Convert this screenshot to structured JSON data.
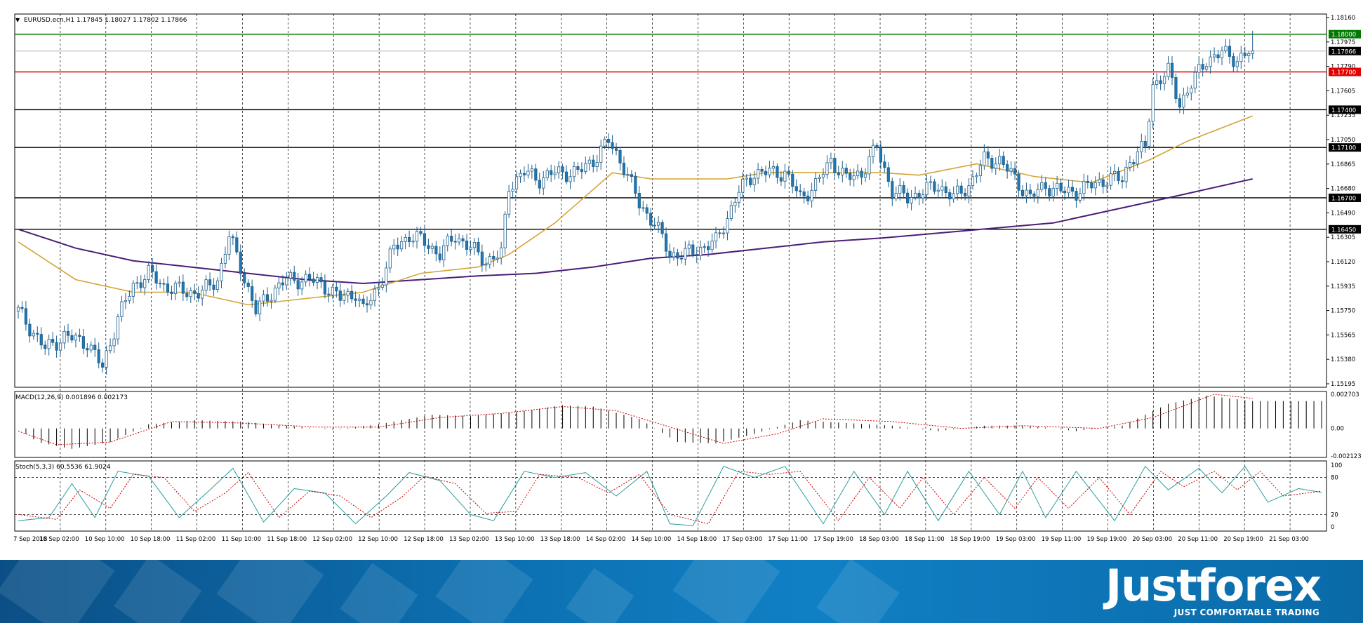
{
  "symbol_header": {
    "marker": "▼",
    "text": "EURUSD.ecn,H1  1.17845 1.18027 1.17802 1.17866"
  },
  "price_axis_labels": [
    "1.18160",
    "1.17975",
    "1.17790",
    "1.17605",
    "1.17235",
    "1.17050",
    "1.16865",
    "1.16680",
    "1.16490",
    "1.16305",
    "1.16120",
    "1.15935",
    "1.15750",
    "1.15565",
    "1.15380",
    "1.15195"
  ],
  "macd_header": "MACD(12,26,9) 0.001896 0.002173",
  "macd_axis_labels": [
    "0.002703",
    "0.00",
    "-0.002123"
  ],
  "stoch_header": "Stoch(5,3,3) 60.5536 61.9024",
  "stoch_axis_labels": [
    "100",
    "80",
    "20",
    "0"
  ],
  "time_labels": [
    "7 Sep 2018",
    "10 Sep 02:00",
    "10 Sep 10:00",
    "10 Sep 18:00",
    "11 Sep 02:00",
    "11 Sep 10:00",
    "11 Sep 18:00",
    "12 Sep 02:00",
    "12 Sep 10:00",
    "12 Sep 18:00",
    "13 Sep 02:00",
    "13 Sep 10:00",
    "13 Sep 18:00",
    "14 Sep 02:00",
    "14 Sep 10:00",
    "14 Sep 18:00",
    "17 Sep 03:00",
    "17 Sep 11:00",
    "17 Sep 19:00",
    "18 Sep 03:00",
    "18 Sep 11:00",
    "18 Sep 19:00",
    "19 Sep 03:00",
    "19 Sep 11:00",
    "19 Sep 19:00",
    "20 Sep 03:00",
    "20 Sep 11:00",
    "20 Sep 19:00",
    "21 Sep 03:00"
  ],
  "brand": {
    "name": "Justforex",
    "tagline": "JUST COMFORTABLE TRADING"
  },
  "colors": {
    "bull": "#ffffff",
    "bear": "#1f77b4",
    "wick": "#1f5f8b",
    "ma_fast": "#d4a437",
    "ma_slow": "#4b1d78",
    "resistance_green": "#007a00",
    "resistance_red": "#e00000",
    "level_black": "#000000"
  },
  "chart_data": {
    "type": "candlestick",
    "symbol": "EURUSD.ecn",
    "timeframe": "H1",
    "ohlc_header": {
      "open": 1.17845,
      "high": 1.18027,
      "low": 1.17802,
      "close": 1.17866
    },
    "ylim": [
      1.15195,
      1.1816
    ],
    "current_price": 1.17866,
    "horizontal_levels": [
      {
        "value": 1.18,
        "label": "1.18000",
        "color": "#007a00"
      },
      {
        "value": 1.177,
        "label": "1.17700",
        "color": "#e00000"
      },
      {
        "value": 1.174,
        "label": "1.17400",
        "color": "#000000"
      },
      {
        "value": 1.171,
        "label": "1.17100",
        "color": "#000000"
      },
      {
        "value": 1.167,
        "label": "1.16700",
        "color": "#000000"
      },
      {
        "value": 1.1645,
        "label": "1.16450",
        "color": "#000000"
      }
    ],
    "close_path": [
      [
        0,
        1.158
      ],
      [
        7,
        1.155
      ],
      [
        12,
        1.156
      ],
      [
        18,
        1.1555
      ],
      [
        22,
        1.1535
      ],
      [
        26,
        1.1575
      ],
      [
        30,
        1.16
      ],
      [
        34,
        1.161
      ],
      [
        38,
        1.16
      ],
      [
        44,
        1.1595
      ],
      [
        48,
        1.1595
      ],
      [
        52,
        1.1605
      ],
      [
        55,
        1.164
      ],
      [
        58,
        1.1615
      ],
      [
        62,
        1.158
      ],
      [
        66,
        1.1595
      ],
      [
        70,
        1.1605
      ],
      [
        76,
        1.1605
      ],
      [
        80,
        1.16
      ],
      [
        84,
        1.159
      ],
      [
        88,
        1.1595
      ],
      [
        90,
        1.158
      ],
      [
        94,
        1.16
      ],
      [
        98,
        1.163
      ],
      [
        102,
        1.164
      ],
      [
        106,
        1.1635
      ],
      [
        110,
        1.1625
      ],
      [
        114,
        1.164
      ],
      [
        118,
        1.163
      ],
      [
        122,
        1.162
      ],
      [
        126,
        1.1625
      ],
      [
        128,
        1.168
      ],
      [
        132,
        1.169
      ],
      [
        136,
        1.1685
      ],
      [
        140,
        1.169
      ],
      [
        146,
        1.169
      ],
      [
        150,
        1.17
      ],
      [
        154,
        1.1715
      ],
      [
        158,
        1.1695
      ],
      [
        162,
        1.1665
      ],
      [
        166,
        1.165
      ],
      [
        170,
        1.1625
      ],
      [
        174,
        1.1625
      ],
      [
        178,
        1.163
      ],
      [
        182,
        1.1635
      ],
      [
        185,
        1.1655
      ],
      [
        188,
        1.1675
      ],
      [
        192,
        1.169
      ],
      [
        196,
        1.169
      ],
      [
        200,
        1.169
      ],
      [
        204,
        1.167
      ],
      [
        208,
        1.168
      ],
      [
        212,
        1.17
      ],
      [
        216,
        1.1685
      ],
      [
        220,
        1.169
      ],
      [
        224,
        1.171
      ],
      [
        228,
        1.1675
      ],
      [
        232,
        1.167
      ],
      [
        236,
        1.1675
      ],
      [
        240,
        1.168
      ],
      [
        244,
        1.167
      ],
      [
        248,
        1.168
      ],
      [
        252,
        1.17
      ],
      [
        256,
        1.17
      ],
      [
        260,
        1.1685
      ],
      [
        264,
        1.167
      ],
      [
        268,
        1.168
      ],
      [
        272,
        1.1675
      ],
      [
        276,
        1.1675
      ],
      [
        280,
        1.168
      ],
      [
        284,
        1.1685
      ],
      [
        288,
        1.1685
      ],
      [
        290,
        1.17
      ],
      [
        294,
        1.171
      ],
      [
        296,
        1.176
      ],
      [
        300,
        1.177
      ],
      [
        303,
        1.1745
      ],
      [
        306,
        1.176
      ],
      [
        310,
        1.178
      ],
      [
        314,
        1.1785
      ],
      [
        318,
        1.178
      ],
      [
        322,
        1.1787
      ]
    ],
    "ma_fast": [
      [
        0,
        1.1635
      ],
      [
        15,
        1.1605
      ],
      [
        30,
        1.1595
      ],
      [
        45,
        1.1595
      ],
      [
        60,
        1.1585
      ],
      [
        75,
        1.159
      ],
      [
        90,
        1.1595
      ],
      [
        105,
        1.161
      ],
      [
        120,
        1.1615
      ],
      [
        128,
        1.1625
      ],
      [
        140,
        1.165
      ],
      [
        155,
        1.169
      ],
      [
        165,
        1.1685
      ],
      [
        175,
        1.1685
      ],
      [
        185,
        1.1685
      ],
      [
        195,
        1.169
      ],
      [
        210,
        1.169
      ],
      [
        225,
        1.169
      ],
      [
        235,
        1.1688
      ],
      [
        250,
        1.1697
      ],
      [
        265,
        1.1687
      ],
      [
        280,
        1.1682
      ],
      [
        295,
        1.17
      ],
      [
        305,
        1.1715
      ],
      [
        322,
        1.1735
      ]
    ],
    "ma_slow": [
      [
        0,
        1.1645
      ],
      [
        15,
        1.163
      ],
      [
        30,
        1.162
      ],
      [
        45,
        1.1615
      ],
      [
        60,
        1.161
      ],
      [
        75,
        1.1605
      ],
      [
        90,
        1.1602
      ],
      [
        105,
        1.1605
      ],
      [
        120,
        1.1608
      ],
      [
        135,
        1.161
      ],
      [
        150,
        1.1615
      ],
      [
        165,
        1.1622
      ],
      [
        180,
        1.1625
      ],
      [
        195,
        1.163
      ],
      [
        210,
        1.1635
      ],
      [
        225,
        1.1638
      ],
      [
        240,
        1.1642
      ],
      [
        255,
        1.1646
      ],
      [
        270,
        1.165
      ],
      [
        285,
        1.166
      ],
      [
        300,
        1.167
      ],
      [
        322,
        1.1685
      ]
    ],
    "macd": {
      "ylim": [
        -0.002123,
        0.002703
      ],
      "histogram_path": [
        [
          0,
          0.0
        ],
        [
          5,
          -0.001
        ],
        [
          14,
          -0.0015
        ],
        [
          24,
          -0.001
        ],
        [
          34,
          0.0003
        ],
        [
          46,
          0.0006
        ],
        [
          58,
          0.0005
        ],
        [
          70,
          0.0002
        ],
        [
          82,
          -0.0001
        ],
        [
          94,
          0.0003
        ],
        [
          108,
          0.001
        ],
        [
          118,
          0.0009
        ],
        [
          130,
          0.0012
        ],
        [
          142,
          0.0017
        ],
        [
          150,
          0.0016
        ],
        [
          162,
          0.0007
        ],
        [
          172,
          -0.001
        ],
        [
          182,
          -0.0011
        ],
        [
          192,
          -0.0004
        ],
        [
          204,
          0.0006
        ],
        [
          216,
          0.0004
        ],
        [
          228,
          0.0002
        ],
        [
          240,
          -0.0002
        ],
        [
          252,
          0.0002
        ],
        [
          264,
          0.0002
        ],
        [
          276,
          -0.0002
        ],
        [
          288,
          0.0002
        ],
        [
          300,
          0.0018
        ],
        [
          310,
          0.0024
        ],
        [
          322,
          0.002
        ]
      ],
      "signal_path": [
        [
          0,
          -0.0002
        ],
        [
          10,
          -0.0012
        ],
        [
          24,
          -0.001
        ],
        [
          40,
          0.0005
        ],
        [
          58,
          0.0004
        ],
        [
          78,
          0.0001
        ],
        [
          94,
          0.0001
        ],
        [
          110,
          0.0008
        ],
        [
          126,
          0.0011
        ],
        [
          142,
          0.0016
        ],
        [
          156,
          0.0013
        ],
        [
          170,
          0.0001
        ],
        [
          184,
          -0.0011
        ],
        [
          198,
          -0.0004
        ],
        [
          210,
          0.0007
        ],
        [
          228,
          0.0005
        ],
        [
          246,
          0.0
        ],
        [
          262,
          0.0002
        ],
        [
          282,
          0.0
        ],
        [
          296,
          0.0008
        ],
        [
          312,
          0.0025
        ],
        [
          322,
          0.0022
        ]
      ]
    },
    "stochastic": {
      "ylim": [
        0,
        100
      ],
      "levels": [
        20,
        80
      ],
      "main_path": [
        [
          0,
          10
        ],
        [
          8,
          15
        ],
        [
          14,
          70
        ],
        [
          20,
          15
        ],
        [
          26,
          90
        ],
        [
          34,
          82
        ],
        [
          42,
          15
        ],
        [
          50,
          60
        ],
        [
          56,
          95
        ],
        [
          64,
          8
        ],
        [
          72,
          62
        ],
        [
          80,
          55
        ],
        [
          88,
          5
        ],
        [
          96,
          50
        ],
        [
          102,
          88
        ],
        [
          110,
          75
        ],
        [
          118,
          20
        ],
        [
          124,
          10
        ],
        [
          132,
          90
        ],
        [
          140,
          80
        ],
        [
          148,
          88
        ],
        [
          156,
          50
        ],
        [
          164,
          90
        ],
        [
          170,
          5
        ],
        [
          176,
          2
        ],
        [
          184,
          98
        ],
        [
          192,
          80
        ],
        [
          200,
          98
        ],
        [
          210,
          5
        ],
        [
          218,
          90
        ],
        [
          226,
          20
        ],
        [
          232,
          90
        ],
        [
          240,
          10
        ],
        [
          248,
          90
        ],
        [
          256,
          20
        ],
        [
          262,
          90
        ],
        [
          268,
          15
        ],
        [
          276,
          90
        ],
        [
          286,
          10
        ],
        [
          294,
          98
        ],
        [
          300,
          60
        ],
        [
          308,
          95
        ],
        [
          314,
          55
        ],
        [
          320,
          98
        ],
        [
          326,
          40
        ],
        [
          334,
          62
        ],
        [
          340,
          56
        ]
      ],
      "signal_path": [
        [
          0,
          20
        ],
        [
          10,
          12
        ],
        [
          16,
          60
        ],
        [
          24,
          30
        ],
        [
          30,
          85
        ],
        [
          38,
          80
        ],
        [
          46,
          25
        ],
        [
          54,
          55
        ],
        [
          60,
          88
        ],
        [
          68,
          15
        ],
        [
          76,
          58
        ],
        [
          84,
          50
        ],
        [
          92,
          15
        ],
        [
          100,
          48
        ],
        [
          106,
          82
        ],
        [
          114,
          70
        ],
        [
          122,
          22
        ],
        [
          130,
          25
        ],
        [
          136,
          85
        ],
        [
          146,
          80
        ],
        [
          154,
          55
        ],
        [
          162,
          85
        ],
        [
          170,
          20
        ],
        [
          180,
          5
        ],
        [
          188,
          90
        ],
        [
          196,
          85
        ],
        [
          204,
          90
        ],
        [
          214,
          10
        ],
        [
          222,
          80
        ],
        [
          230,
          30
        ],
        [
          236,
          80
        ],
        [
          244,
          20
        ],
        [
          252,
          80
        ],
        [
          260,
          30
        ],
        [
          266,
          80
        ],
        [
          274,
          30
        ],
        [
          282,
          80
        ],
        [
          290,
          20
        ],
        [
          298,
          90
        ],
        [
          304,
          65
        ],
        [
          312,
          90
        ],
        [
          318,
          60
        ],
        [
          324,
          90
        ],
        [
          330,
          50
        ],
        [
          340,
          58
        ]
      ]
    }
  }
}
